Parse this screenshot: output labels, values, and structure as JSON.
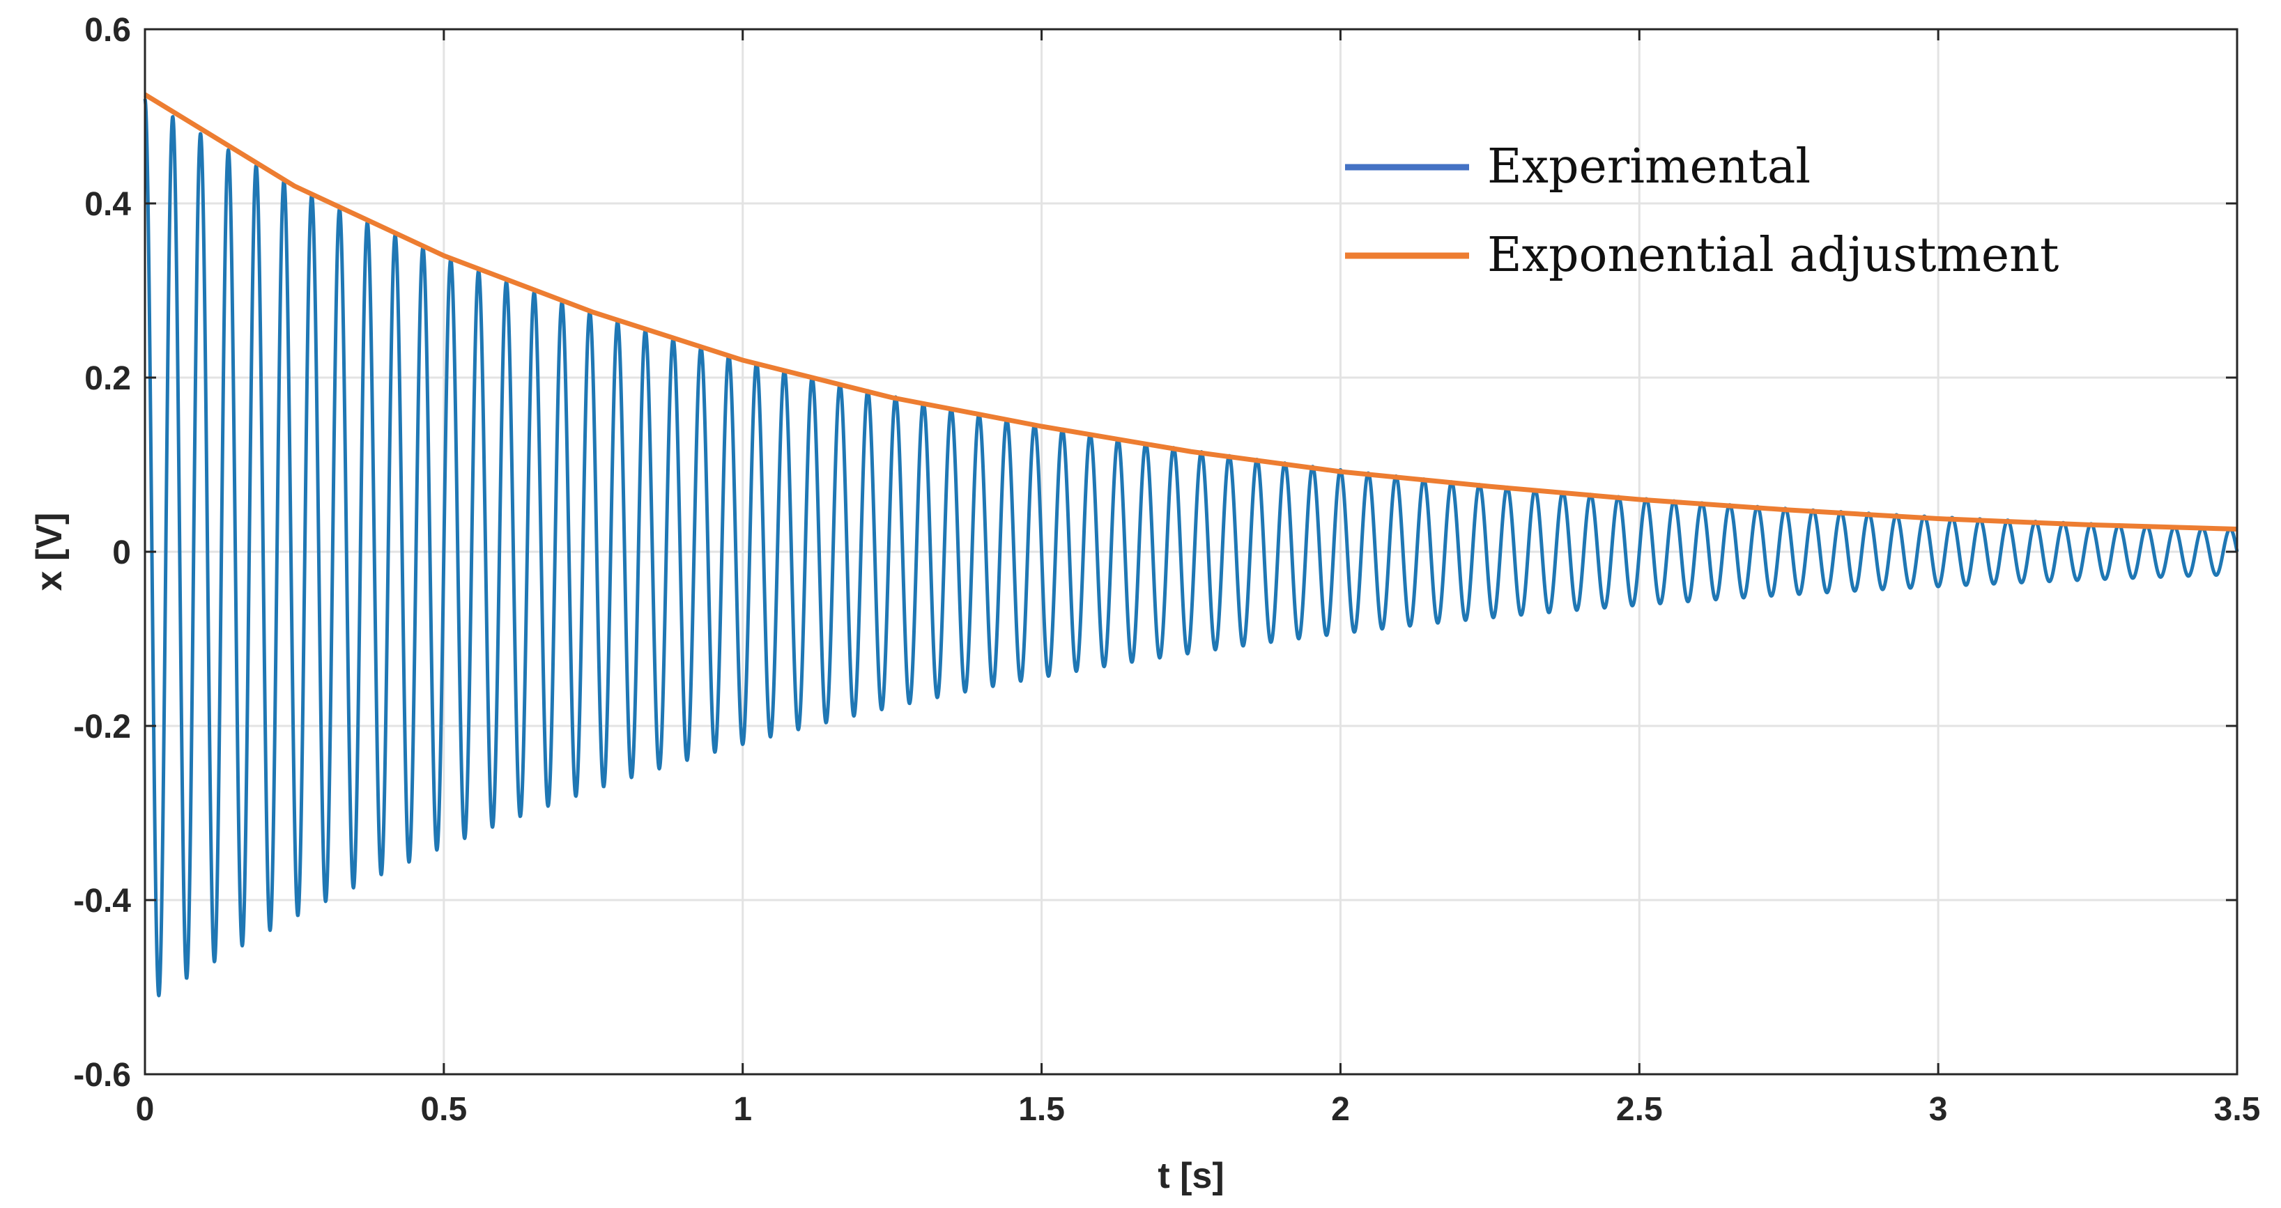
{
  "chart_data": {
    "type": "line",
    "xlabel": "t [s]",
    "ylabel": "x [V]",
    "xlim": [
      0,
      3.5
    ],
    "ylim": [
      -0.6,
      0.6
    ],
    "xticks": [
      0,
      0.5,
      1,
      1.5,
      2,
      2.5,
      3,
      3.5
    ],
    "xtick_labels": [
      "0",
      "0.5",
      "1",
      "1.5",
      "2",
      "2.5",
      "3",
      "3.5"
    ],
    "yticks": [
      -0.6,
      -0.4,
      -0.2,
      0,
      0.2,
      0.4,
      0.6
    ],
    "ytick_labels": [
      "-0.6",
      "-0.4",
      "-0.2",
      "0",
      "0.2",
      "0.4",
      "0.6"
    ],
    "grid": true,
    "legend": {
      "placement": "top-right",
      "entries": [
        {
          "label": "Experimental",
          "color": "#4472c4"
        },
        {
          "label": "Exponential adjustment",
          "color": "#ed7d31"
        }
      ]
    },
    "series": [
      {
        "name": "Experimental",
        "color": "#1f77b4",
        "model": "damped_sine",
        "amplitude": 0.52,
        "decay_rate": 0.855,
        "frequency_hz": 21.5,
        "t_start": 0,
        "t_end": 3.5
      },
      {
        "name": "Exponential adjustment",
        "color": "#ed7d31",
        "x": [
          0,
          0.25,
          0.5,
          0.75,
          1.0,
          1.25,
          1.5,
          1.75,
          2.0,
          2.25,
          2.5,
          2.75,
          3.0,
          3.25,
          3.5
        ],
        "y": [
          0.525,
          0.42,
          0.34,
          0.275,
          0.22,
          0.177,
          0.144,
          0.115,
          0.092,
          0.075,
          0.06,
          0.048,
          0.038,
          0.031,
          0.026
        ]
      }
    ]
  }
}
